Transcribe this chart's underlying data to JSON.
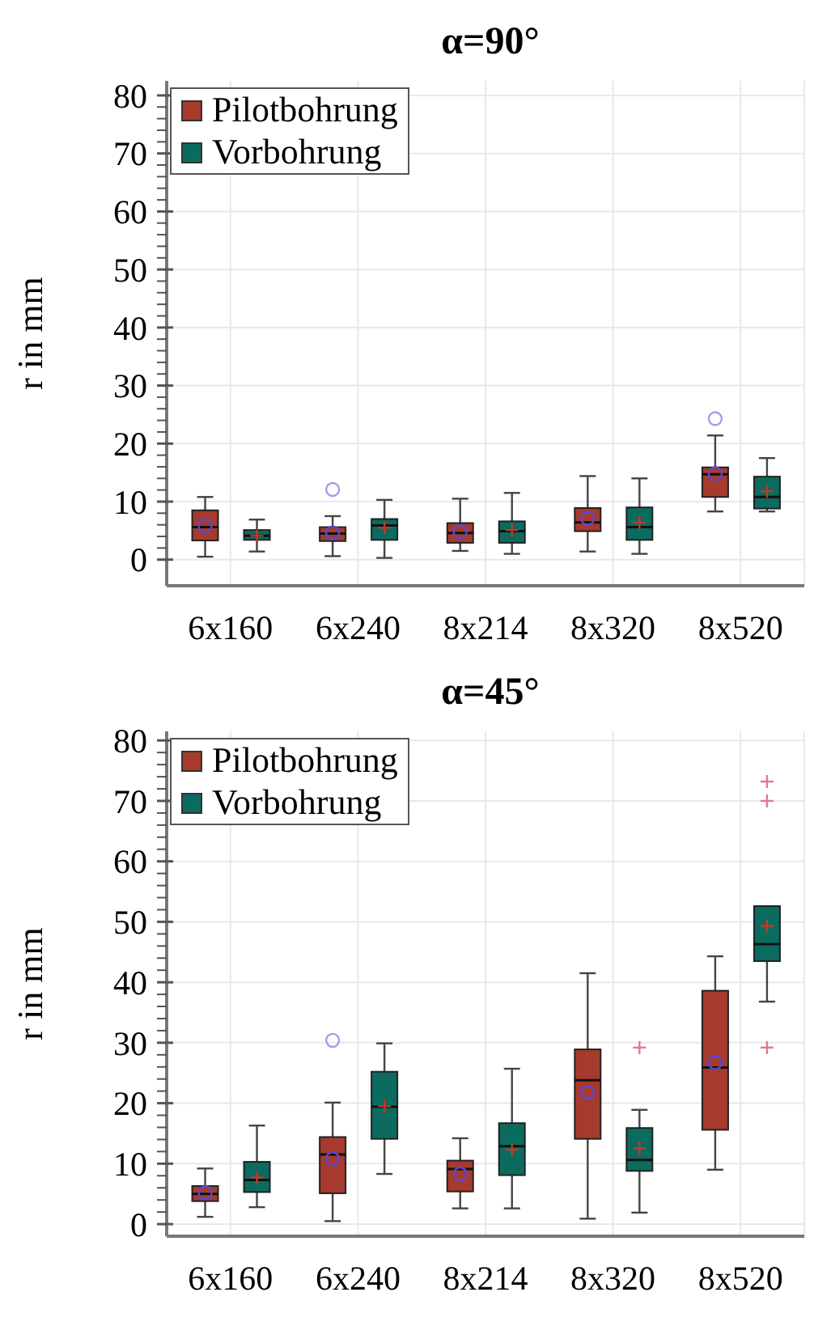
{
  "chart_data": [
    {
      "type": "box",
      "title": "α=90°",
      "ylabel": "r in mm",
      "categories": [
        "6x160",
        "6x240",
        "8x214",
        "8x320",
        "8x520"
      ],
      "series": [
        {
          "name": "Pilotbohrung",
          "color": "#a63a2c",
          "marker": "circle",
          "boxes": [
            {
              "low": 0.5,
              "q1": 3.3,
              "median": 5.6,
              "q3": 8.5,
              "high": 10.8,
              "mean": 5.8
            },
            {
              "low": 0.6,
              "q1": 3.2,
              "median": 4.5,
              "q3": 5.6,
              "high": 7.5,
              "mean": 4.6,
              "outliers": [
                12.1
              ]
            },
            {
              "low": 1.5,
              "q1": 2.9,
              "median": 4.6,
              "q3": 6.3,
              "high": 10.5,
              "mean": 4.8
            },
            {
              "low": 1.4,
              "q1": 4.9,
              "median": 6.4,
              "q3": 8.9,
              "high": 14.4,
              "mean": 7.1
            },
            {
              "low": 8.3,
              "q1": 10.8,
              "median": 14.7,
              "q3": 15.9,
              "high": 21.4,
              "mean": 14.8,
              "outliers": [
                24.3
              ]
            }
          ]
        },
        {
          "name": "Vorbohrung",
          "color": "#0b6b5e",
          "marker": "cross",
          "boxes": [
            {
              "low": 1.4,
              "q1": 3.4,
              "median": 4.1,
              "q3": 5.1,
              "high": 6.9,
              "mean": 4.1
            },
            {
              "low": 0.3,
              "q1": 3.4,
              "median": 5.9,
              "q3": 7.0,
              "high": 10.3,
              "mean": 5.5
            },
            {
              "low": 1.0,
              "q1": 2.9,
              "median": 4.9,
              "q3": 6.6,
              "high": 11.5,
              "mean": 5.1
            },
            {
              "low": 1.0,
              "q1": 3.4,
              "median": 5.6,
              "q3": 9.0,
              "high": 14.0,
              "mean": 6.4
            },
            {
              "low": 8.3,
              "q1": 8.8,
              "median": 10.8,
              "q3": 14.3,
              "high": 17.5,
              "mean": 11.8
            }
          ]
        }
      ],
      "ylim": [
        -4.5,
        82.5
      ],
      "yticks": [
        0,
        {
          "value": 2,
          "label": null
        },
        {
          "value": 4,
          "label": null
        },
        {
          "value": 6,
          "label": null
        },
        {
          "value": 8,
          "label": null
        },
        10,
        {
          "value": 12,
          "label": null
        },
        {
          "value": 14,
          "label": null
        },
        {
          "value": 16,
          "label": null
        },
        {
          "value": 18,
          "label": null
        },
        20,
        {
          "value": 22,
          "label": null
        },
        {
          "value": 24,
          "label": null
        },
        {
          "value": 26,
          "label": null
        },
        {
          "value": 28,
          "label": null
        },
        30,
        {
          "value": 32,
          "label": null
        },
        {
          "value": 34,
          "label": null
        },
        {
          "value": 36,
          "label": null
        },
        {
          "value": 38,
          "label": null
        },
        40,
        {
          "value": 42,
          "label": null
        },
        {
          "value": 44,
          "label": null
        },
        {
          "value": 46,
          "label": null
        },
        {
          "value": 48,
          "label": null
        },
        50,
        {
          "value": 52,
          "label": null
        },
        {
          "value": 54,
          "label": null
        },
        {
          "value": 56,
          "label": null
        },
        {
          "value": 58,
          "label": null
        },
        60,
        {
          "value": 62,
          "label": null
        },
        {
          "value": 64,
          "label": null
        },
        {
          "value": 66,
          "label": null
        },
        {
          "value": 68,
          "label": null
        },
        70,
        {
          "value": 72,
          "label": null
        },
        {
          "value": 74,
          "label": null
        },
        {
          "value": 76,
          "label": null
        },
        {
          "value": 78,
          "label": null
        },
        80
      ],
      "grid": true,
      "legend": "top left"
    },
    {
      "type": "box",
      "title": "α=45°",
      "ylabel": "r in mm",
      "categories": [
        "6x160",
        "6x240",
        "8x214",
        "8x320",
        "8x520"
      ],
      "series": [
        {
          "name": "Pilotbohrung",
          "color": "#a63a2c",
          "marker": "circle",
          "boxes": [
            {
              "low": 1.2,
              "q1": 3.8,
              "median": 5.0,
              "q3": 6.3,
              "high": 9.2,
              "mean": 5.2
            },
            {
              "low": 0.5,
              "q1": 5.1,
              "median": 11.5,
              "q3": 14.4,
              "high": 20.1,
              "mean": 10.8,
              "outliers": [
                30.4
              ]
            },
            {
              "low": 2.6,
              "q1": 5.4,
              "median": 9.1,
              "q3": 10.5,
              "high": 14.2,
              "mean": 8.3
            },
            {
              "low": 0.9,
              "q1": 14.1,
              "median": 23.8,
              "q3": 28.9,
              "high": 41.5,
              "mean": 21.8
            },
            {
              "low": 9.0,
              "q1": 15.6,
              "median": 25.9,
              "q3": 38.6,
              "high": 44.3,
              "mean": 26.7
            }
          ]
        },
        {
          "name": "Vorbohrung",
          "color": "#0b6b5e",
          "marker": "cross",
          "boxes": [
            {
              "low": 2.8,
              "q1": 5.3,
              "median": 7.3,
              "q3": 10.3,
              "high": 16.3,
              "mean": 7.7
            },
            {
              "low": 8.3,
              "q1": 14.1,
              "median": 19.4,
              "q3": 25.2,
              "high": 29.9,
              "mean": 19.5
            },
            {
              "low": 2.6,
              "q1": 8.1,
              "median": 12.9,
              "q3": 16.7,
              "high": 25.7,
              "mean": 12.3
            },
            {
              "low": 1.9,
              "q1": 8.8,
              "median": 10.6,
              "q3": 15.9,
              "high": 18.9,
              "mean": 12.5,
              "outliers": [
                29.2
              ]
            },
            {
              "low": 36.8,
              "q1": 43.5,
              "median": 46.3,
              "q3": 52.6,
              "high": 52.6,
              "mean": 49.3,
              "outliers": [
                29.2,
                70.0,
                73.2
              ]
            }
          ]
        }
      ],
      "ylim": [
        -2,
        81.5
      ],
      "yticks": [
        0,
        {
          "value": 2,
          "label": null
        },
        {
          "value": 4,
          "label": null
        },
        {
          "value": 6,
          "label": null
        },
        {
          "value": 8,
          "label": null
        },
        10,
        {
          "value": 12,
          "label": null
        },
        {
          "value": 14,
          "label": null
        },
        {
          "value": 16,
          "label": null
        },
        {
          "value": 18,
          "label": null
        },
        20,
        {
          "value": 22,
          "label": null
        },
        {
          "value": 24,
          "label": null
        },
        {
          "value": 26,
          "label": null
        },
        {
          "value": 28,
          "label": null
        },
        30,
        {
          "value": 32,
          "label": null
        },
        {
          "value": 34,
          "label": null
        },
        {
          "value": 36,
          "label": null
        },
        {
          "value": 38,
          "label": null
        },
        40,
        {
          "value": 42,
          "label": null
        },
        {
          "value": 44,
          "label": null
        },
        {
          "value": 46,
          "label": null
        },
        {
          "value": 48,
          "label": null
        },
        50,
        {
          "value": 52,
          "label": null
        },
        {
          "value": 54,
          "label": null
        },
        {
          "value": 56,
          "label": null
        },
        {
          "value": 58,
          "label": null
        },
        60,
        {
          "value": 62,
          "label": null
        },
        {
          "value": 64,
          "label": null
        },
        {
          "value": 66,
          "label": null
        },
        {
          "value": 68,
          "label": null
        },
        70,
        {
          "value": 72,
          "label": null
        },
        {
          "value": 74,
          "label": null
        },
        {
          "value": 76,
          "label": null
        },
        {
          "value": 78,
          "label": null
        },
        80
      ],
      "grid": true,
      "legend": "top left"
    }
  ]
}
